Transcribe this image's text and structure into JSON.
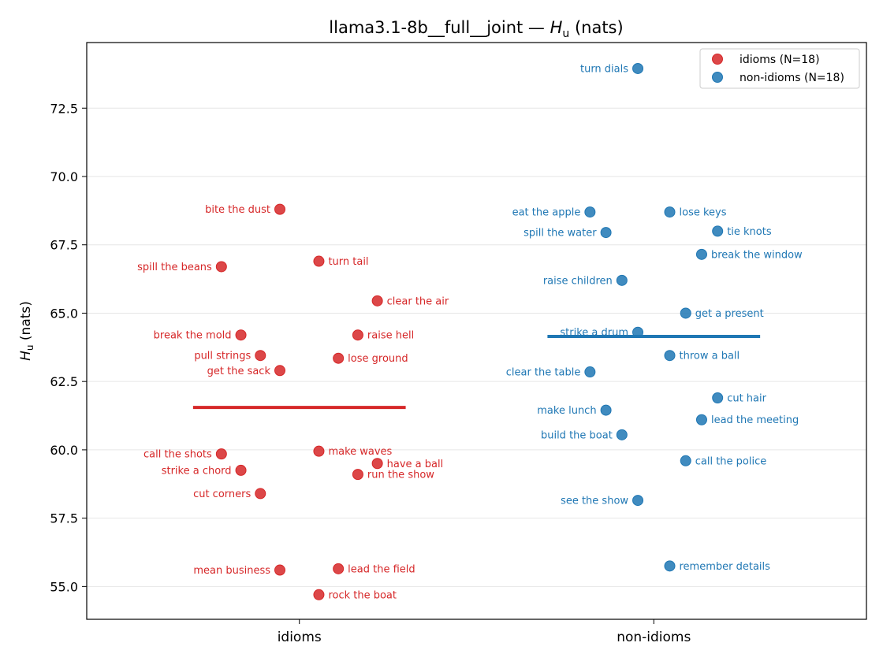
{
  "chart_data": {
    "type": "scatter",
    "title": "llama3.1-8b__full__joint — ",
    "title_symbol": "H",
    "title_subscript": "u",
    "title_suffix": " (nats)",
    "ylabel_symbol": "H",
    "ylabel_subscript": "u",
    "ylabel_suffix": " (nats)",
    "xlabel": "",
    "categories": [
      "idioms",
      "non-idioms"
    ],
    "ylim": [
      53.8,
      74.9
    ],
    "yticks": [
      55.0,
      57.5,
      60.0,
      62.5,
      65.0,
      67.5,
      70.0,
      72.5
    ],
    "ytick_labels": [
      "55.0",
      "57.5",
      "60.0",
      "62.5",
      "65.0",
      "67.5",
      "70.0",
      "72.5"
    ],
    "grid": "horizontal",
    "legend_position": "top-right",
    "colors": {
      "idioms": "#d62728",
      "non-idioms": "#1f77b4",
      "grid": "#e6e6e6"
    },
    "series": [
      {
        "name": "idioms (N=18)",
        "category": "idioms",
        "color": "#d62728",
        "mean": 61.55,
        "points": [
          {
            "label": "bite the dust",
            "y": 68.8,
            "jitter": -0.055,
            "side": "left"
          },
          {
            "label": "spill the beans",
            "y": 66.7,
            "jitter": -0.22,
            "side": "left"
          },
          {
            "label": "turn tail",
            "y": 66.9,
            "jitter": 0.055,
            "side": "right"
          },
          {
            "label": "clear the air",
            "y": 65.45,
            "jitter": 0.22,
            "side": "right"
          },
          {
            "label": "break the mold",
            "y": 64.2,
            "jitter": -0.165,
            "side": "left"
          },
          {
            "label": "raise hell",
            "y": 64.2,
            "jitter": 0.165,
            "side": "right"
          },
          {
            "label": "pull strings",
            "y": 63.45,
            "jitter": -0.11,
            "side": "left"
          },
          {
            "label": "lose ground",
            "y": 63.35,
            "jitter": 0.11,
            "side": "right"
          },
          {
            "label": "get the sack",
            "y": 62.9,
            "jitter": -0.055,
            "side": "left"
          },
          {
            "label": "call the shots",
            "y": 59.85,
            "jitter": -0.22,
            "side": "left"
          },
          {
            "label": "make waves",
            "y": 59.95,
            "jitter": 0.055,
            "side": "right"
          },
          {
            "label": "have a ball",
            "y": 59.5,
            "jitter": 0.22,
            "side": "right"
          },
          {
            "label": "strike a chord",
            "y": 59.25,
            "jitter": -0.165,
            "side": "left"
          },
          {
            "label": "run the show",
            "y": 59.1,
            "jitter": 0.165,
            "side": "right"
          },
          {
            "label": "cut corners",
            "y": 58.4,
            "jitter": -0.11,
            "side": "left"
          },
          {
            "label": "mean business",
            "y": 55.6,
            "jitter": -0.055,
            "side": "left"
          },
          {
            "label": "lead the field",
            "y": 55.65,
            "jitter": 0.11,
            "side": "right"
          },
          {
            "label": "rock the boat",
            "y": 54.7,
            "jitter": 0.055,
            "side": "right"
          }
        ]
      },
      {
        "name": "non-idioms (N=18)",
        "category": "non-idioms",
        "color": "#1f77b4",
        "mean": 64.15,
        "points": [
          {
            "label": "turn dials",
            "y": 73.95,
            "jitter": -0.045,
            "side": "left"
          },
          {
            "label": "eat the apple",
            "y": 68.7,
            "jitter": -0.18,
            "side": "left"
          },
          {
            "label": "lose keys",
            "y": 68.7,
            "jitter": 0.045,
            "side": "right"
          },
          {
            "label": "spill the water",
            "y": 67.95,
            "jitter": -0.135,
            "side": "left"
          },
          {
            "label": "tie knots",
            "y": 68.0,
            "jitter": 0.18,
            "side": "right"
          },
          {
            "label": "break the window",
            "y": 67.15,
            "jitter": 0.135,
            "side": "right"
          },
          {
            "label": "raise children",
            "y": 66.2,
            "jitter": -0.09,
            "side": "left"
          },
          {
            "label": "get a present",
            "y": 65.0,
            "jitter": 0.09,
            "side": "right"
          },
          {
            "label": "strike a drum",
            "y": 64.3,
            "jitter": -0.045,
            "side": "left"
          },
          {
            "label": "throw a ball",
            "y": 63.45,
            "jitter": 0.045,
            "side": "right"
          },
          {
            "label": "clear the table",
            "y": 62.85,
            "jitter": -0.18,
            "side": "left"
          },
          {
            "label": "cut hair",
            "y": 61.9,
            "jitter": 0.18,
            "side": "right"
          },
          {
            "label": "make lunch",
            "y": 61.45,
            "jitter": -0.135,
            "side": "left"
          },
          {
            "label": "lead the meeting",
            "y": 61.1,
            "jitter": 0.135,
            "side": "right"
          },
          {
            "label": "build the boat",
            "y": 60.55,
            "jitter": -0.09,
            "side": "left"
          },
          {
            "label": "call the police",
            "y": 59.6,
            "jitter": 0.09,
            "side": "right"
          },
          {
            "label": "see the show",
            "y": 58.15,
            "jitter": -0.045,
            "side": "left"
          },
          {
            "label": "remember details",
            "y": 55.75,
            "jitter": 0.045,
            "side": "right"
          }
        ]
      }
    ]
  }
}
